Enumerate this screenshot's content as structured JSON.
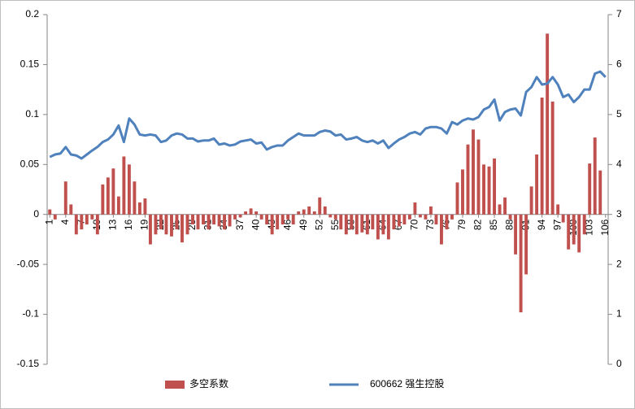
{
  "chart_data": {
    "type": "bar",
    "categories": [
      "1",
      null,
      null,
      "4",
      null,
      null,
      "7",
      null,
      null,
      "10",
      null,
      null,
      "13",
      null,
      null,
      "16",
      null,
      null,
      "19",
      null,
      null,
      "22",
      null,
      null,
      "25",
      null,
      null,
      "28",
      null,
      null,
      "31",
      null,
      null,
      "34",
      null,
      null,
      "37",
      null,
      null,
      "40",
      null,
      null,
      "43",
      null,
      null,
      "46",
      null,
      null,
      "49",
      null,
      null,
      "52",
      null,
      null,
      "55",
      null,
      null,
      "58",
      null,
      null,
      "61",
      null,
      null,
      "64",
      null,
      null,
      "67",
      null,
      null,
      "70",
      null,
      null,
      "73",
      null,
      null,
      "76",
      null,
      null,
      "79",
      null,
      null,
      "82",
      null,
      null,
      "85",
      null,
      null,
      "88",
      null,
      null,
      "91",
      null,
      null,
      "94",
      null,
      null,
      "97",
      null,
      null,
      "100",
      null,
      null,
      "103",
      null,
      null,
      "106"
    ],
    "series": [
      {
        "name": "多空系数",
        "type": "bar",
        "color": "#c0504d",
        "values": [
          0.005,
          -0.005,
          0,
          0.033,
          0.01,
          -0.02,
          -0.015,
          -0.01,
          -0.005,
          -0.02,
          0.03,
          0.037,
          0.046,
          0.018,
          0.058,
          0.05,
          0.033,
          0.012,
          0.016,
          -0.03,
          -0.02,
          -0.015,
          -0.02,
          -0.022,
          -0.015,
          -0.028,
          -0.02,
          -0.01,
          -0.015,
          -0.01,
          -0.015,
          -0.01,
          -0.012,
          -0.015,
          -0.012,
          -0.005,
          -0.003,
          0.003,
          0.006,
          0.003,
          -0.005,
          -0.01,
          -0.02,
          -0.015,
          -0.01,
          -0.005,
          -0.01,
          0.003,
          0.005,
          0.008,
          0.003,
          0.017,
          0.008,
          -0.003,
          -0.005,
          -0.015,
          -0.02,
          -0.015,
          -0.02,
          -0.018,
          -0.02,
          -0.015,
          -0.025,
          -0.02,
          -0.025,
          -0.015,
          -0.012,
          -0.01,
          -0.005,
          0.012,
          -0.003,
          -0.005,
          0.008,
          -0.01,
          -0.03,
          -0.015,
          -0.005,
          0.032,
          0.045,
          0.07,
          0.085,
          0.075,
          0.05,
          0.048,
          0.056,
          0.01,
          0.017,
          -0.005,
          -0.04,
          -0.098,
          -0.06,
          0.028,
          0.06,
          0.117,
          0.181,
          0.113,
          0.01,
          -0.008,
          -0.035,
          -0.03,
          -0.038,
          -0.02,
          0.051,
          0.077,
          0.044,
          0
        ]
      },
      {
        "name": "600662 强生控股",
        "type": "line",
        "axis": "y2",
        "color": "#4f81bd",
        "values": [
          4.15,
          4.2,
          4.22,
          4.35,
          4.2,
          4.18,
          4.12,
          4.2,
          4.28,
          4.35,
          4.45,
          4.5,
          4.6,
          4.78,
          4.45,
          4.92,
          4.8,
          4.6,
          4.58,
          4.6,
          4.58,
          4.45,
          4.48,
          4.58,
          4.62,
          4.6,
          4.52,
          4.52,
          4.46,
          4.48,
          4.48,
          4.52,
          4.4,
          4.42,
          4.38,
          4.4,
          4.46,
          4.48,
          4.5,
          4.42,
          4.44,
          4.3,
          4.35,
          4.38,
          4.38,
          4.48,
          4.55,
          4.62,
          4.58,
          4.58,
          4.58,
          4.65,
          4.68,
          4.66,
          4.58,
          4.6,
          4.5,
          4.52,
          4.55,
          4.48,
          4.45,
          4.48,
          4.42,
          4.48,
          4.33,
          4.42,
          4.5,
          4.55,
          4.62,
          4.65,
          4.6,
          4.72,
          4.75,
          4.75,
          4.72,
          4.62,
          4.85,
          4.8,
          4.88,
          4.92,
          4.9,
          4.95,
          5.1,
          5.15,
          5.3,
          4.88,
          5.05,
          5.1,
          5.12,
          4.98,
          5.45,
          5.55,
          5.75,
          5.6,
          5.62,
          5.75,
          5.6,
          5.35,
          5.4,
          5.25,
          5.35,
          5.5,
          5.5,
          5.82,
          5.86,
          5.75
        ]
      }
    ],
    "ylim": [
      -0.15,
      0.2
    ],
    "yticks": [
      -0.15,
      -0.1,
      -0.05,
      0,
      0.05,
      0.1,
      0.15,
      0.2
    ],
    "y2lim": [
      0,
      7
    ],
    "y2ticks": [
      0,
      1,
      2,
      3,
      4,
      5,
      6,
      7
    ],
    "grid": false,
    "legend": "bottom"
  }
}
